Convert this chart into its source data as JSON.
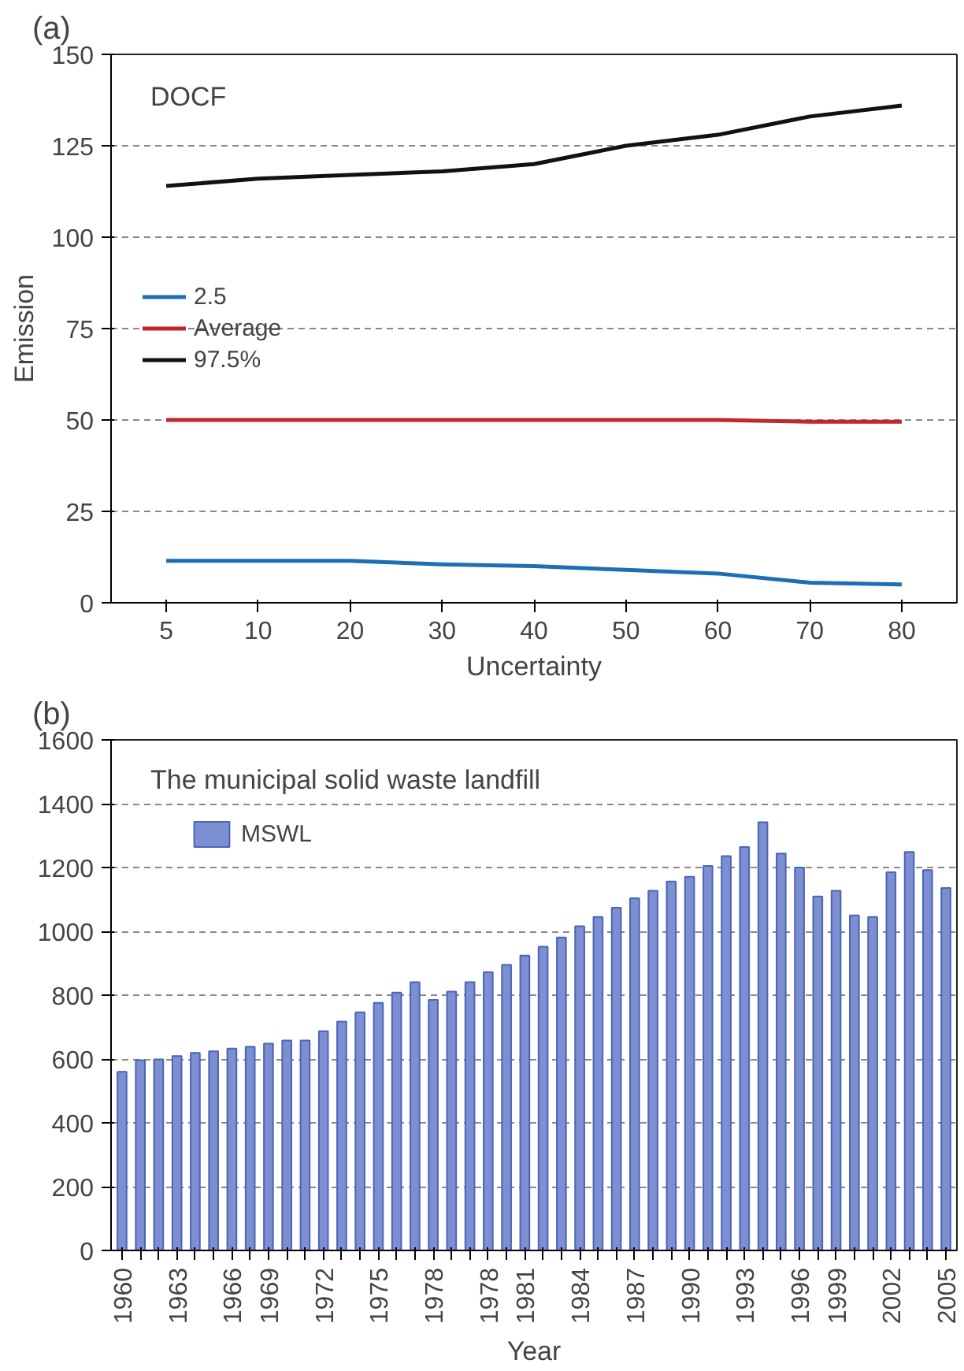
{
  "chart_data": [
    {
      "type": "line",
      "title": "(a)",
      "annotations": [
        "DOCF"
      ],
      "xlabel": "Uncertainty",
      "ylabel": "Emission",
      "categories": [
        "5",
        "10",
        "20",
        "30",
        "40",
        "50",
        "60",
        "70",
        "80"
      ],
      "series": [
        {
          "name": "2.5",
          "color": "#1a6fb5",
          "values": [
            11.5,
            11.5,
            11.5,
            10.5,
            10,
            9,
            8,
            5.5,
            5
          ]
        },
        {
          "name": "Average",
          "color": "#c0282d",
          "values": [
            50,
            50,
            50,
            50,
            50,
            50,
            50,
            49.5,
            49.5
          ]
        },
        {
          "name": "97.5%",
          "color": "#111111",
          "values": [
            114,
            116,
            117,
            118,
            120,
            125,
            128,
            133,
            136
          ]
        }
      ],
      "ylim": [
        0,
        150
      ],
      "yticks": [
        0,
        25,
        50,
        75,
        100,
        125,
        150
      ],
      "grid": "y",
      "legend": "left"
    },
    {
      "type": "bar",
      "title": "(b)",
      "annotations": [
        "The municipal solid waste landfill"
      ],
      "xlabel": "Year",
      "categories": [
        "1960",
        null,
        null,
        "1963",
        null,
        null,
        "1966",
        null,
        "1969",
        null,
        null,
        "1972",
        null,
        null,
        "1975",
        null,
        null,
        "1978",
        null,
        null,
        "1978",
        null,
        "1981",
        null,
        null,
        "1984",
        null,
        null,
        "1987",
        null,
        null,
        "1990",
        null,
        null,
        "1993",
        null,
        null,
        "1996",
        null,
        "1999",
        null,
        null,
        "2002",
        null,
        null,
        "2005"
      ],
      "series": [
        {
          "name": "MSWL",
          "color": "#7b8fd1",
          "values": [
            560,
            596,
            599,
            609,
            619,
            624,
            633,
            638,
            648,
            658,
            658,
            687,
            717,
            746,
            776,
            808,
            841,
            785,
            811,
            841,
            872,
            895,
            924,
            952,
            981,
            1016,
            1045,
            1074,
            1104,
            1127,
            1156,
            1171,
            1205,
            1236,
            1264,
            1342,
            1244,
            1200,
            1109,
            1127,
            1050,
            1045,
            1185,
            1249,
            1192,
            1136
          ]
        }
      ],
      "ylim": [
        0,
        1600
      ],
      "yticks": [
        0,
        200,
        400,
        600,
        800,
        1000,
        1200,
        1400,
        1600
      ],
      "grid": "y",
      "legend": "top left"
    }
  ]
}
